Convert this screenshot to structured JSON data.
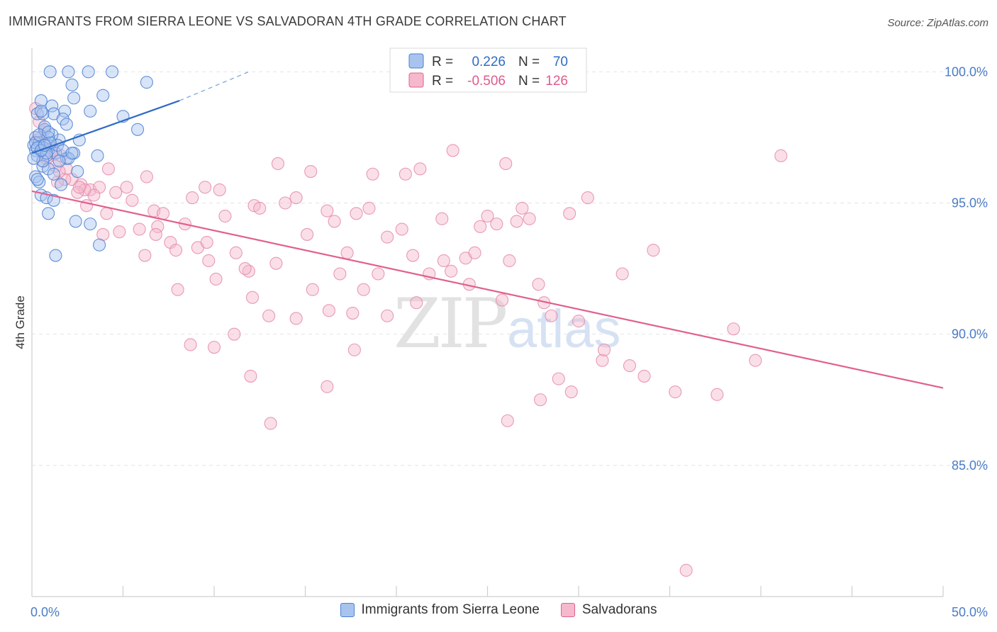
{
  "title": "IMMIGRANTS FROM SIERRA LEONE VS SALVADORAN 4TH GRADE CORRELATION CHART",
  "source": "Source: ZipAtlas.com",
  "watermark": {
    "zip": "ZIP",
    "atlas": "atlas"
  },
  "legend": {
    "r_label": "R =",
    "n_label": "N =",
    "series": [
      {
        "name": "Immigrants from Sierra Leone",
        "r": "0.226",
        "n": "70",
        "color": "#4a7fd4",
        "fill": "#a8c4ee"
      },
      {
        "name": "Salvadorans",
        "r": "-0.506",
        "n": "126",
        "color": "#e0608e",
        "fill": "#f5b8cc"
      }
    ]
  },
  "chart_data": {
    "type": "scatter",
    "title": "IMMIGRANTS FROM SIERRA LEONE VS SALVADORAN 4TH GRADE CORRELATION CHART",
    "xlabel": "",
    "ylabel": "4th Grade",
    "xlim": [
      0,
      50
    ],
    "ylim": [
      80.0,
      100.9
    ],
    "x_tick_labels": [
      "0.0%",
      "50.0%"
    ],
    "y_ticks": [
      85,
      90,
      95,
      100
    ],
    "y_tick_labels": [
      "85.0%",
      "90.0%",
      "95.0%",
      "100.0%"
    ],
    "grid": true,
    "series": [
      {
        "name": "Immigrants from Sierra Leone",
        "color": "#4a7fd4",
        "trend": {
          "x": [
            0,
            8.1
          ],
          "y": [
            96.9,
            98.9
          ],
          "dashed_to": [
            11.9,
            100.0
          ]
        },
        "points": [
          [
            1.0,
            100.0
          ],
          [
            2.0,
            100.0
          ],
          [
            3.1,
            100.0
          ],
          [
            4.4,
            100.0
          ],
          [
            2.2,
            99.5
          ],
          [
            6.3,
            99.6
          ],
          [
            3.9,
            99.1
          ],
          [
            2.3,
            99.0
          ],
          [
            0.5,
            98.9
          ],
          [
            1.1,
            98.7
          ],
          [
            0.3,
            98.4
          ],
          [
            1.2,
            98.4
          ],
          [
            1.8,
            98.5
          ],
          [
            3.2,
            98.5
          ],
          [
            0.6,
            98.4
          ],
          [
            5.0,
            98.3
          ],
          [
            1.7,
            98.2
          ],
          [
            0.7,
            97.8
          ],
          [
            0.2,
            97.5
          ],
          [
            1.5,
            97.4
          ],
          [
            0.1,
            97.2
          ],
          [
            0.4,
            97.3
          ],
          [
            1.0,
            97.2
          ],
          [
            0.6,
            97.1
          ],
          [
            0.2,
            97.0
          ],
          [
            0.9,
            97.0
          ],
          [
            1.3,
            96.9
          ],
          [
            0.8,
            96.8
          ],
          [
            1.9,
            96.7
          ],
          [
            0.3,
            96.8
          ],
          [
            0.6,
            96.4
          ],
          [
            0.9,
            96.3
          ],
          [
            0.2,
            96.0
          ],
          [
            0.4,
            95.8
          ],
          [
            1.6,
            95.7
          ],
          [
            0.5,
            95.3
          ],
          [
            0.8,
            95.2
          ],
          [
            1.2,
            95.1
          ],
          [
            0.9,
            94.6
          ],
          [
            2.4,
            94.3
          ],
          [
            3.2,
            94.2
          ],
          [
            3.7,
            93.4
          ],
          [
            1.3,
            93.0
          ],
          [
            5.8,
            97.8
          ],
          [
            3.6,
            96.8
          ],
          [
            2.6,
            97.4
          ],
          [
            2.5,
            96.2
          ],
          [
            2.3,
            96.9
          ],
          [
            1.1,
            97.6
          ],
          [
            0.7,
            97.9
          ],
          [
            0.5,
            98.5
          ],
          [
            0.2,
            97.3
          ],
          [
            0.3,
            97.1
          ],
          [
            0.9,
            97.5
          ],
          [
            1.4,
            97.2
          ],
          [
            0.6,
            96.6
          ],
          [
            2.0,
            96.7
          ],
          [
            1.7,
            97.0
          ],
          [
            0.4,
            97.6
          ],
          [
            1.9,
            98.0
          ],
          [
            0.8,
            96.9
          ],
          [
            1.0,
            97.3
          ],
          [
            0.5,
            97.0
          ],
          [
            0.1,
            96.7
          ],
          [
            0.3,
            95.9
          ],
          [
            1.5,
            96.6
          ],
          [
            1.2,
            96.1
          ],
          [
            0.7,
            97.2
          ],
          [
            2.2,
            96.9
          ],
          [
            0.9,
            97.7
          ]
        ]
      },
      {
        "name": "Salvadorans",
        "color": "#e0608e",
        "trend": {
          "x": [
            0,
            50
          ],
          "y": [
            95.45,
            87.95
          ]
        },
        "points": [
          [
            0.2,
            98.6
          ],
          [
            0.4,
            98.1
          ],
          [
            0.7,
            97.8
          ],
          [
            0.3,
            97.4
          ],
          [
            0.9,
            97.2
          ],
          [
            1.1,
            96.9
          ],
          [
            0.6,
            96.6
          ],
          [
            1.6,
            96.8
          ],
          [
            1.9,
            96.3
          ],
          [
            2.2,
            95.9
          ],
          [
            2.7,
            95.7
          ],
          [
            3.2,
            95.5
          ],
          [
            3.7,
            95.6
          ],
          [
            4.2,
            96.3
          ],
          [
            4.6,
            95.4
          ],
          [
            5.2,
            95.6
          ],
          [
            5.5,
            95.1
          ],
          [
            6.3,
            96.0
          ],
          [
            6.7,
            94.7
          ],
          [
            7.2,
            94.6
          ],
          [
            5.9,
            94.0
          ],
          [
            6.9,
            94.1
          ],
          [
            7.6,
            93.5
          ],
          [
            8.4,
            94.2
          ],
          [
            8.8,
            95.2
          ],
          [
            9.1,
            93.3
          ],
          [
            9.6,
            93.5
          ],
          [
            10.3,
            95.5
          ],
          [
            10.6,
            94.5
          ],
          [
            11.2,
            93.1
          ],
          [
            11.9,
            92.4
          ],
          [
            12.2,
            94.9
          ],
          [
            12.5,
            94.8
          ],
          [
            13.4,
            92.7
          ],
          [
            13.9,
            95.0
          ],
          [
            14.5,
            95.2
          ],
          [
            15.1,
            93.8
          ],
          [
            15.3,
            96.2
          ],
          [
            16.2,
            94.7
          ],
          [
            16.6,
            94.3
          ],
          [
            17.3,
            93.1
          ],
          [
            17.8,
            94.6
          ],
          [
            18.5,
            94.8
          ],
          [
            19.0,
            92.3
          ],
          [
            19.5,
            93.7
          ],
          [
            20.3,
            94.0
          ],
          [
            20.9,
            93.0
          ],
          [
            21.3,
            96.3
          ],
          [
            21.8,
            92.3
          ],
          [
            22.5,
            94.4
          ],
          [
            23.0,
            92.4
          ],
          [
            24.0,
            91.9
          ],
          [
            24.6,
            94.1
          ],
          [
            25.0,
            94.5
          ],
          [
            25.5,
            94.2
          ],
          [
            26.2,
            92.8
          ],
          [
            26.6,
            94.3
          ],
          [
            26.9,
            94.8
          ],
          [
            27.3,
            94.4
          ],
          [
            28.1,
            91.2
          ],
          [
            28.5,
            90.7
          ],
          [
            29.5,
            94.6
          ],
          [
            30.0,
            90.5
          ],
          [
            30.5,
            95.2
          ],
          [
            31.3,
            89.0
          ],
          [
            32.4,
            92.3
          ],
          [
            32.8,
            88.8
          ],
          [
            33.6,
            88.4
          ],
          [
            35.3,
            87.8
          ],
          [
            37.6,
            87.7
          ],
          [
            38.5,
            90.2
          ],
          [
            39.7,
            89.0
          ],
          [
            41.1,
            96.8
          ],
          [
            35.9,
            81.0
          ],
          [
            27.9,
            87.5
          ],
          [
            26.0,
            96.5
          ],
          [
            23.1,
            97.0
          ],
          [
            20.5,
            96.1
          ],
          [
            13.5,
            96.5
          ],
          [
            18.7,
            96.1
          ],
          [
            9.5,
            95.6
          ],
          [
            10.1,
            92.1
          ],
          [
            8.0,
            91.7
          ],
          [
            6.8,
            93.8
          ],
          [
            4.8,
            93.9
          ],
          [
            3.9,
            93.8
          ],
          [
            3.4,
            95.3
          ],
          [
            2.9,
            95.5
          ],
          [
            1.8,
            95.9
          ],
          [
            2.5,
            95.4
          ],
          [
            1.3,
            96.4
          ],
          [
            0.8,
            96.7
          ],
          [
            1.5,
            96.2
          ],
          [
            12.1,
            91.4
          ],
          [
            13.0,
            90.7
          ],
          [
            14.5,
            90.6
          ],
          [
            16.2,
            88.0
          ],
          [
            16.3,
            90.9
          ],
          [
            17.6,
            90.8
          ],
          [
            17.7,
            89.4
          ],
          [
            19.5,
            90.7
          ],
          [
            11.1,
            90.0
          ],
          [
            10.0,
            89.5
          ],
          [
            8.7,
            89.6
          ],
          [
            12.0,
            88.4
          ],
          [
            13.1,
            86.6
          ],
          [
            15.4,
            91.7
          ],
          [
            16.9,
            92.3
          ],
          [
            18.2,
            91.7
          ],
          [
            21.1,
            91.2
          ],
          [
            22.6,
            92.8
          ],
          [
            23.8,
            92.9
          ],
          [
            24.3,
            93.1
          ],
          [
            25.8,
            91.3
          ],
          [
            27.8,
            91.9
          ],
          [
            28.9,
            88.3
          ],
          [
            31.4,
            89.4
          ],
          [
            34.1,
            93.2
          ],
          [
            11.7,
            92.5
          ],
          [
            9.7,
            92.8
          ],
          [
            7.9,
            93.2
          ],
          [
            6.2,
            93.0
          ],
          [
            4.1,
            94.6
          ],
          [
            3.0,
            94.9
          ],
          [
            1.4,
            95.8
          ],
          [
            2.6,
            95.6
          ],
          [
            0.5,
            97.5
          ],
          [
            1.2,
            97.0
          ],
          [
            29.6,
            87.8
          ],
          [
            26.1,
            86.7
          ]
        ]
      }
    ]
  }
}
